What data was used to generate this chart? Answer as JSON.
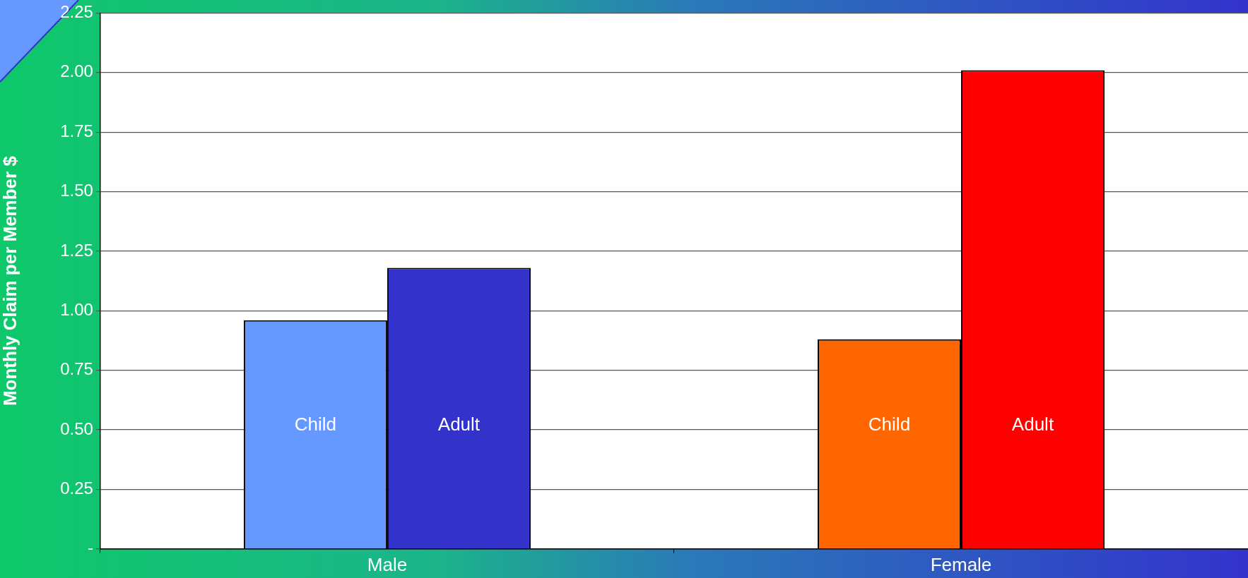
{
  "chart_data": {
    "type": "bar",
    "ylabel": "Monthly Claim per Member $",
    "categories": [
      "Male",
      "Female"
    ],
    "series": [
      {
        "name": "Child",
        "colors": [
          "#6699ff",
          "#ff6600"
        ],
        "values": [
          0.96,
          0.88
        ]
      },
      {
        "name": "Adult",
        "colors": [
          "#3333cc",
          "#ff0000"
        ],
        "values": [
          1.18,
          2.01
        ]
      }
    ],
    "ylim": [
      0,
      2.25
    ],
    "yticks": [
      {
        "value": 0,
        "label": "-"
      },
      0.25,
      {
        "value": 0.5,
        "label": "0.50"
      },
      0.75,
      {
        "value": 1,
        "label": "1.00"
      },
      1.25,
      {
        "value": 1.5,
        "label": "1.50"
      },
      1.75,
      {
        "value": 2,
        "label": "2.00"
      },
      2.25
    ],
    "grid": "y",
    "legend": false
  }
}
